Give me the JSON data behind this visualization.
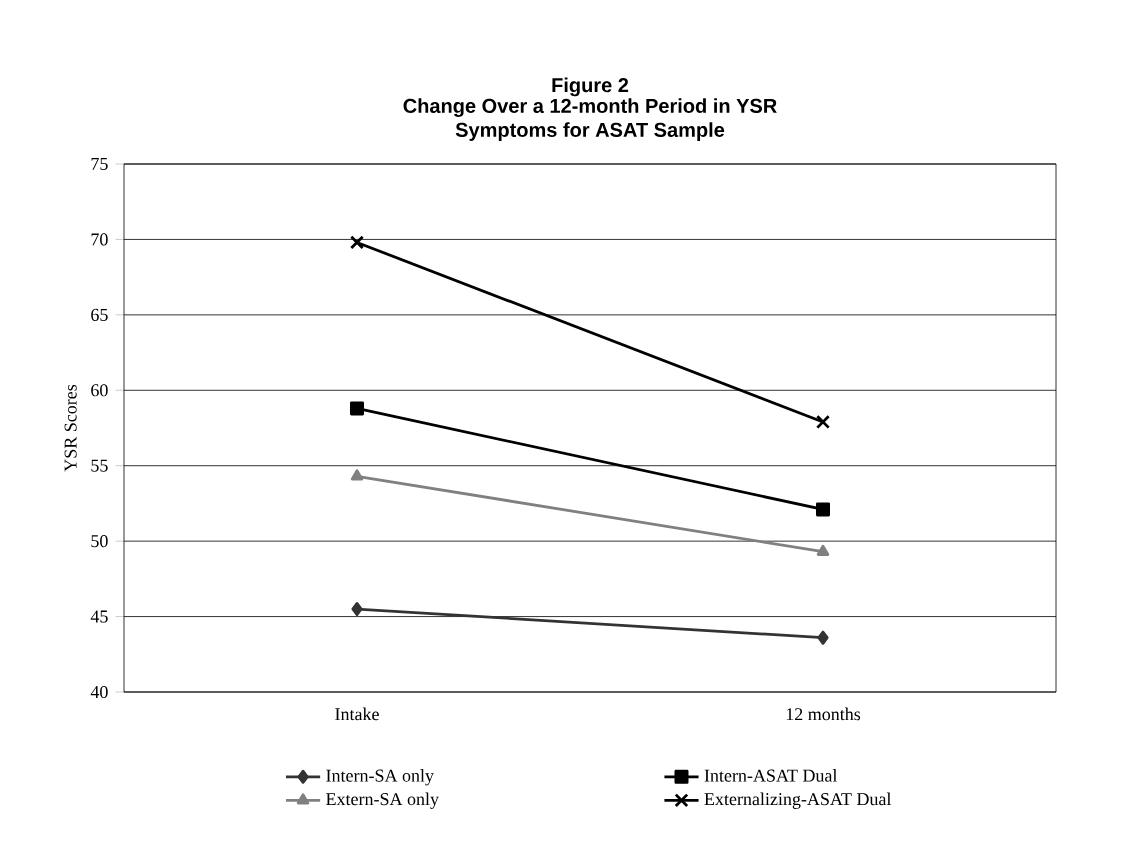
{
  "chart_data": {
    "type": "line",
    "title": "Figure 2",
    "subtitle": "Change Over a 12-month Period in YSR Symptoms for ASAT Sample",
    "ylabel": "YSR  Scores",
    "categories": [
      "Intake",
      "12 months"
    ],
    "series": [
      {
        "name": "Intern-SA  only",
        "color": "#333333",
        "marker": "diamond",
        "values": [
          45.5,
          43.6
        ]
      },
      {
        "name": "Intern-ASAT Dual",
        "color": "#000000",
        "marker": "square",
        "values": [
          58.8,
          52.1
        ]
      },
      {
        "name": "Extern-SA  only",
        "color": "#808080",
        "marker": "triangle",
        "values": [
          54.3,
          49.3
        ]
      },
      {
        "name": "Externalizing-ASAT Dual",
        "color": "#000000",
        "marker": "cross",
        "values": [
          69.8,
          57.9
        ]
      }
    ],
    "ylim": [
      40,
      75
    ],
    "yticks": [
      40,
      45,
      50,
      55,
      60,
      65,
      70,
      75
    ],
    "grid": "y",
    "legend": "bottom",
    "line_style": "solid"
  }
}
